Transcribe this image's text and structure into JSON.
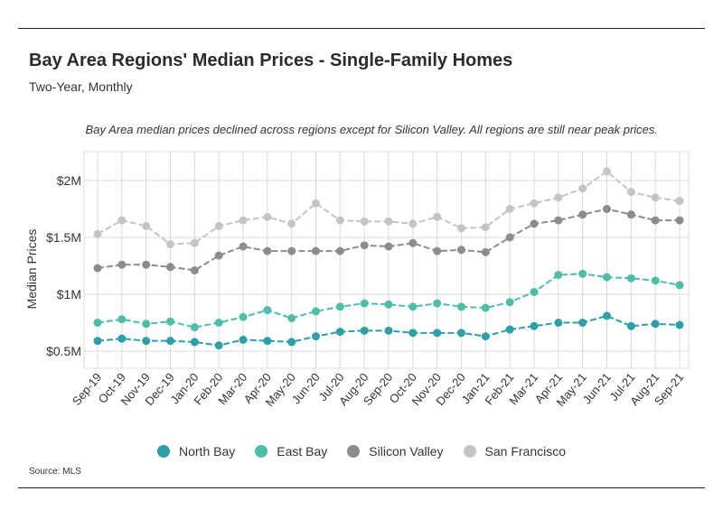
{
  "header": {
    "title": "Bay Area Regions' Median Prices - Single-Family Homes",
    "subtitle": "Two-Year, Monthly"
  },
  "annotation": "Bay Area median prices declined across regions except for Silicon Valley. All regions are still near peak prices.",
  "source": "Source:  MLS",
  "chart_data": {
    "type": "line",
    "title": "Bay Area Regions' Median Prices - Single-Family Homes",
    "subtitle": "Two-Year, Monthly",
    "xlabel": "",
    "ylabel": "Median Prices",
    "ylim": [
      0.45,
      2.1
    ],
    "yticks": [
      0.5,
      1,
      1.5,
      2
    ],
    "ytick_labels": [
      "$0.5M",
      "$1M",
      "$1.5M",
      "$2M"
    ],
    "grid": true,
    "legend_position": "bottom",
    "categories": [
      "Sep-19",
      "Oct-19",
      "Nov-19",
      "Dec-19",
      "Jan-20",
      "Feb-20",
      "Mar-20",
      "Apr-20",
      "May-20",
      "Jun-20",
      "Jul-20",
      "Aug-20",
      "Sep-20",
      "Oct-20",
      "Nov-20",
      "Dec-20",
      "Jan-21",
      "Feb-21",
      "Mar-21",
      "Apr-21",
      "May-21",
      "Jun-21",
      "Jul-21",
      "Aug-21",
      "Sep-21"
    ],
    "series": [
      {
        "name": "North Bay",
        "color": "#2e9ea7",
        "values": [
          0.59,
          0.61,
          0.59,
          0.59,
          0.58,
          0.55,
          0.6,
          0.59,
          0.58,
          0.63,
          0.67,
          0.68,
          0.68,
          0.66,
          0.66,
          0.66,
          0.63,
          0.69,
          0.72,
          0.75,
          0.75,
          0.81,
          0.72,
          0.74,
          0.73
        ]
      },
      {
        "name": "East Bay",
        "color": "#4dbdaa",
        "values": [
          0.75,
          0.78,
          0.74,
          0.76,
          0.71,
          0.75,
          0.8,
          0.86,
          0.79,
          0.85,
          0.89,
          0.92,
          0.91,
          0.89,
          0.92,
          0.89,
          0.88,
          0.93,
          1.02,
          1.17,
          1.18,
          1.15,
          1.14,
          1.12,
          1.08
        ]
      },
      {
        "name": "Silicon Valley",
        "color": "#8c8c8c",
        "values": [
          1.23,
          1.26,
          1.26,
          1.24,
          1.21,
          1.34,
          1.42,
          1.38,
          1.38,
          1.38,
          1.38,
          1.43,
          1.42,
          1.45,
          1.38,
          1.39,
          1.37,
          1.5,
          1.62,
          1.65,
          1.7,
          1.75,
          1.7,
          1.65,
          1.65
        ]
      },
      {
        "name": "San Francisco",
        "color": "#c4c4c4",
        "values": [
          1.53,
          1.65,
          1.6,
          1.44,
          1.45,
          1.6,
          1.65,
          1.68,
          1.62,
          1.8,
          1.65,
          1.64,
          1.64,
          1.62,
          1.68,
          1.58,
          1.59,
          1.75,
          1.8,
          1.85,
          1.93,
          2.08,
          1.9,
          1.85,
          1.82
        ]
      }
    ]
  }
}
